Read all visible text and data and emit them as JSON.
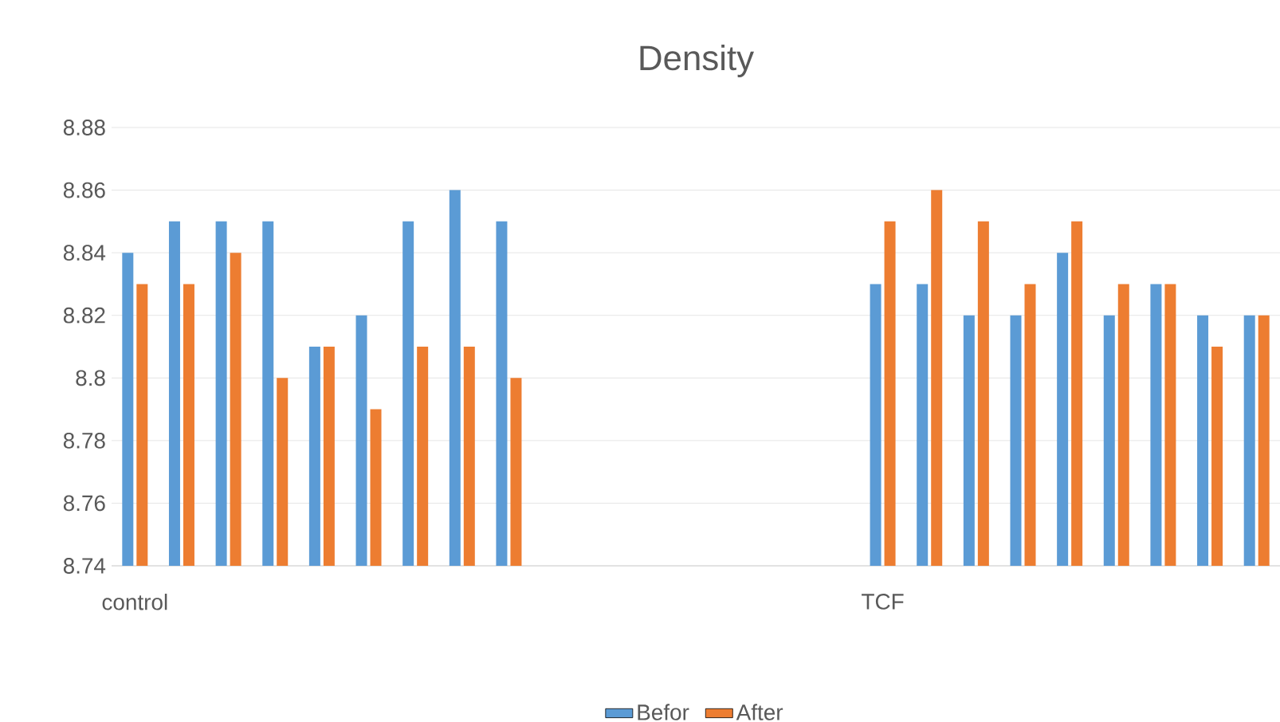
{
  "chart_data": {
    "type": "bar",
    "title": "Density",
    "categories": [
      "control",
      null,
      null,
      null,
      null,
      null,
      null,
      null,
      null,
      null,
      null,
      null,
      null,
      null,
      null,
      null,
      "TCF",
      null,
      null,
      null,
      null,
      null,
      null,
      null,
      null
    ],
    "series": [
      {
        "name": "Befor",
        "color": "#5b9bd5",
        "values": [
          8.84,
          8.85,
          8.85,
          8.85,
          8.81,
          8.82,
          8.85,
          8.86,
          8.85,
          null,
          null,
          null,
          null,
          null,
          null,
          null,
          8.83,
          8.83,
          8.82,
          8.82,
          8.84,
          8.82,
          8.83,
          8.82,
          8.82
        ]
      },
      {
        "name": "After",
        "color": "#ed7d31",
        "values": [
          8.83,
          8.83,
          8.84,
          8.8,
          8.81,
          8.79,
          8.81,
          8.81,
          8.8,
          null,
          null,
          null,
          null,
          null,
          null,
          null,
          8.85,
          8.86,
          8.85,
          8.83,
          8.85,
          8.83,
          8.83,
          8.81,
          8.82
        ]
      }
    ],
    "ylim": [
      8.74,
      8.88
    ],
    "yticks": [
      8.74,
      8.76,
      8.78,
      {
        "value": 8.8,
        "label": "8.8"
      },
      8.82,
      8.84,
      8.86,
      8.88
    ],
    "grid": "y",
    "legend": "bottom"
  }
}
